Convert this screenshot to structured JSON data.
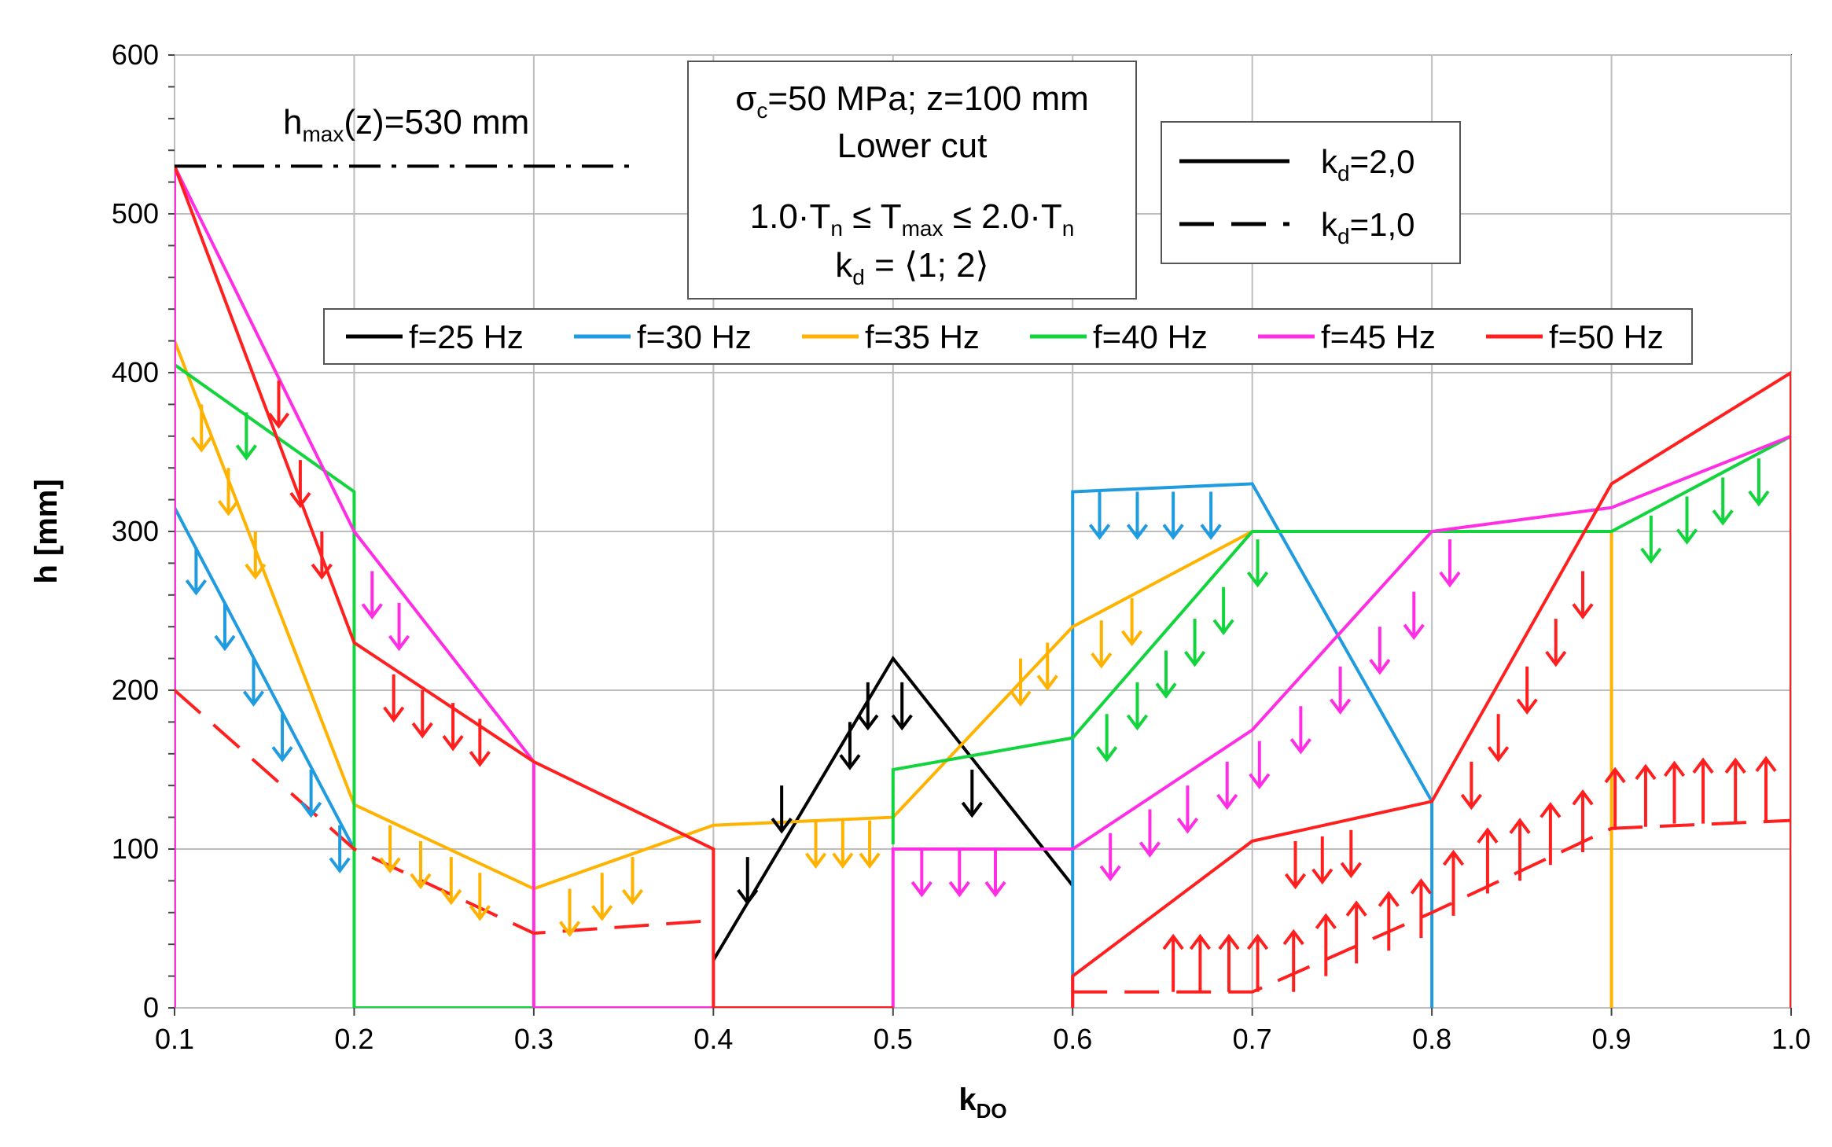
{
  "chart_data": {
    "type": "line",
    "xlabel": "k",
    "xlabel_sub": "DO",
    "ylabel": "h  [mm]",
    "xlim": [
      0.1,
      1.0
    ],
    "ylim": [
      0,
      600
    ],
    "x_ticks": [
      "0.1",
      "0.2",
      "0.3",
      "0.4",
      "0.5",
      "0.6",
      "0.7",
      "0.8",
      "0.9",
      "1.0"
    ],
    "y_ticks": [
      "0",
      "100",
      "200",
      "300",
      "400",
      "500",
      "600"
    ],
    "grid": true,
    "hmax": {
      "value": 530,
      "label_pre": "h",
      "label_sub": "max",
      "label_post": "(z)=530 mm"
    },
    "info_box": {
      "line1_pre": "σ",
      "line1_sub": "c",
      "line1_post": "=50 MPa; z=100 mm",
      "line2": "Lower cut",
      "line3_a": "1.0·T",
      "line3_sub1": "n",
      "line3_b": " ≤ T",
      "line3_sub2": "max",
      "line3_c": "  ≤ 2.0·T",
      "line3_sub3": "n",
      "line4_a": "k",
      "line4_sub": "d",
      "line4_b": " = ⟨1; 2⟩"
    },
    "style_legend": [
      {
        "pre": "k",
        "sub": "d",
        "post": "=2,0",
        "dash": "solid"
      },
      {
        "pre": "k",
        "sub": "d",
        "post": "=1,0",
        "dash": "dashed"
      }
    ],
    "series": [
      {
        "name": "f=25 Hz",
        "color": "#000000",
        "solid": [
          [
            0.4,
            30
          ],
          [
            0.5,
            220
          ],
          [
            0.6,
            77
          ]
        ],
        "arrows": [
          [
            0.419,
            95
          ],
          [
            0.438,
            140
          ],
          [
            0.476,
            180
          ],
          [
            0.486,
            205
          ],
          [
            0.505,
            205
          ],
          [
            0.544,
            150
          ]
        ],
        "arrow_dir": "down"
      },
      {
        "name": "f=30 Hz",
        "color": "#1f9be0",
        "solid": [
          [
            0.1,
            315
          ],
          [
            0.2,
            100
          ]
        ],
        "solid2": [
          [
            0.6,
            0
          ],
          [
            0.6,
            325
          ],
          [
            0.7,
            330
          ],
          [
            0.8,
            130
          ],
          [
            0.8,
            0
          ]
        ],
        "arrows": [
          [
            0.112,
            290
          ],
          [
            0.128,
            255
          ],
          [
            0.144,
            220
          ],
          [
            0.16,
            185
          ],
          [
            0.176,
            150
          ],
          [
            0.192,
            115
          ],
          [
            0.615,
            325
          ],
          [
            0.636,
            325
          ],
          [
            0.656,
            325
          ],
          [
            0.677,
            325
          ]
        ],
        "arrow_dir": "down"
      },
      {
        "name": "f=35 Hz",
        "color": "#ffb300",
        "solid": [
          [
            0.1,
            420
          ],
          [
            0.2,
            128
          ],
          [
            0.3,
            75
          ],
          [
            0.4,
            115
          ],
          [
            0.5,
            120
          ],
          [
            0.6,
            240
          ],
          [
            0.7,
            300
          ]
        ],
        "solid2": [
          [
            0.9,
            0
          ],
          [
            0.9,
            300
          ]
        ],
        "arrows": [
          [
            0.115,
            380
          ],
          [
            0.13,
            340
          ],
          [
            0.145,
            300
          ],
          [
            0.22,
            115
          ],
          [
            0.237,
            105
          ],
          [
            0.254,
            95
          ],
          [
            0.27,
            85
          ],
          [
            0.32,
            75
          ],
          [
            0.338,
            85
          ],
          [
            0.355,
            95
          ],
          [
            0.457,
            118
          ],
          [
            0.472,
            118
          ],
          [
            0.487,
            118
          ],
          [
            0.571,
            220
          ],
          [
            0.586,
            230
          ],
          [
            0.616,
            244
          ],
          [
            0.633,
            258
          ]
        ],
        "arrow_dir": "down"
      },
      {
        "name": "f=40 Hz",
        "color": "#12d43c",
        "solid": [
          [
            0.1,
            405
          ],
          [
            0.2,
            325
          ],
          [
            0.2,
            0
          ],
          [
            0.3,
            0
          ]
        ],
        "solid2": [
          [
            0.5,
            103
          ],
          [
            0.5,
            150
          ],
          [
            0.6,
            170
          ],
          [
            0.7,
            300
          ],
          [
            0.9,
            300
          ],
          [
            1.0,
            360
          ]
        ],
        "arrows": [
          [
            0.14,
            375
          ],
          [
            0.619,
            185
          ],
          [
            0.636,
            205
          ],
          [
            0.652,
            225
          ],
          [
            0.668,
            245
          ],
          [
            0.684,
            265
          ],
          [
            0.703,
            295
          ],
          [
            0.922,
            310
          ],
          [
            0.942,
            322
          ],
          [
            0.962,
            334
          ],
          [
            0.982,
            346
          ]
        ],
        "arrow_dir": "down"
      },
      {
        "name": "f=45 Hz",
        "color": "#ff2ee4",
        "solid": [
          [
            0.1,
            0
          ],
          [
            0.1,
            530
          ],
          [
            0.2,
            300
          ],
          [
            0.3,
            155
          ],
          [
            0.3,
            0
          ],
          [
            0.4,
            0
          ]
        ],
        "solid2": [
          [
            0.5,
            0
          ],
          [
            0.5,
            100
          ],
          [
            0.6,
            100
          ],
          [
            0.7,
            175
          ],
          [
            0.8,
            300
          ],
          [
            0.9,
            315
          ],
          [
            1.0,
            360
          ]
        ],
        "arrows": [
          [
            0.21,
            275
          ],
          [
            0.225,
            255
          ],
          [
            0.516,
            100
          ],
          [
            0.537,
            100
          ],
          [
            0.557,
            100
          ],
          [
            0.621,
            110
          ],
          [
            0.643,
            125
          ],
          [
            0.664,
            140
          ],
          [
            0.686,
            155
          ],
          [
            0.704,
            168
          ],
          [
            0.727,
            190
          ],
          [
            0.749,
            215
          ],
          [
            0.771,
            240
          ],
          [
            0.79,
            262
          ],
          [
            0.81,
            295
          ]
        ],
        "arrow_dir": "down"
      },
      {
        "name": "f=50 Hz",
        "color": "#ff1f1f",
        "solid": [
          [
            0.1,
            530
          ],
          [
            0.2,
            230
          ],
          [
            0.3,
            155
          ],
          [
            0.4,
            100
          ],
          [
            0.4,
            0
          ],
          [
            0.5,
            0
          ]
        ],
        "solid2": [
          [
            0.6,
            0
          ],
          [
            0.6,
            20
          ],
          [
            0.7,
            105
          ],
          [
            0.8,
            130
          ],
          [
            0.9,
            330
          ],
          [
            1.0,
            400
          ],
          [
            1.0,
            0
          ]
        ],
        "dashed": [
          [
            0.1,
            200
          ],
          [
            0.2,
            100
          ],
          [
            0.3,
            47
          ],
          [
            0.4,
            55
          ]
        ],
        "dashed2": [
          [
            0.6,
            10
          ],
          [
            0.7,
            10
          ],
          [
            0.8,
            60
          ],
          [
            0.9,
            113
          ],
          [
            1.0,
            118
          ]
        ],
        "arrows": [
          [
            0.158,
            395
          ],
          [
            0.17,
            345
          ],
          [
            0.182,
            300
          ],
          [
            0.222,
            210
          ],
          [
            0.238,
            200
          ],
          [
            0.255,
            192
          ],
          [
            0.27,
            182
          ],
          [
            0.724,
            105
          ],
          [
            0.739,
            108
          ],
          [
            0.755,
            112
          ],
          [
            0.822,
            155
          ],
          [
            0.837,
            185
          ],
          [
            0.853,
            215
          ],
          [
            0.869,
            245
          ],
          [
            0.884,
            275
          ]
        ],
        "arrow_dir": "down",
        "up_arrows": [
          [
            0.656,
            10,
            45
          ],
          [
            0.671,
            10,
            45
          ],
          [
            0.687,
            10,
            45
          ],
          [
            0.703,
            10,
            45
          ],
          [
            0.723,
            10,
            48
          ],
          [
            0.741,
            20,
            58
          ],
          [
            0.758,
            28,
            66
          ],
          [
            0.776,
            36,
            72
          ],
          [
            0.794,
            44,
            80
          ],
          [
            0.812,
            58,
            98
          ],
          [
            0.831,
            72,
            112
          ],
          [
            0.849,
            80,
            118
          ],
          [
            0.866,
            90,
            128
          ],
          [
            0.884,
            98,
            136
          ],
          [
            0.902,
            112,
            150
          ],
          [
            0.919,
            114,
            152
          ],
          [
            0.935,
            116,
            154
          ],
          [
            0.951,
            116,
            156
          ],
          [
            0.969,
            116,
            156
          ],
          [
            0.986,
            117,
            157
          ]
        ],
        "arrow_color": "#ff1f1f"
      }
    ]
  }
}
